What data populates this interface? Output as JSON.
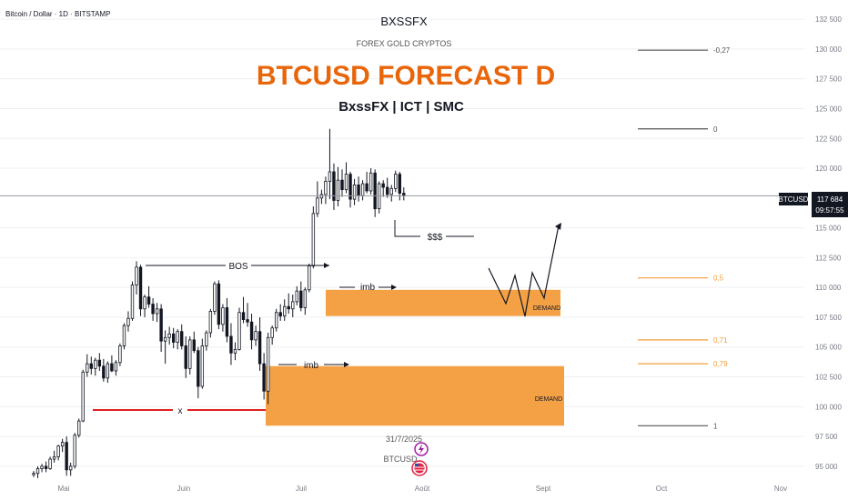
{
  "header": {
    "symbol_line": "Bitcoin / Dollar · 1D · BITSTAMP",
    "brand": "BXSSFX",
    "tagline": "FOREX GOLD CRYPTOS",
    "title": "BTCUSD FORECAST D",
    "subtitle": "BxssFX | ICT | SMC"
  },
  "colors": {
    "up": "#ffffff",
    "down": "#131722",
    "demand_fill": "#f39c3c",
    "title": "#e8650a",
    "fib_gray": "#555555",
    "fib_orange": "#f39c3c",
    "red_line": "#e02020",
    "grid": "#eef0f3",
    "axis_text": "#787b86"
  },
  "price_tag": {
    "symbol": "BTCUSD",
    "price": "117 684",
    "countdown": "09:57:55",
    "value": 117684
  },
  "markers": {
    "date": "31/7/2025",
    "symbol_partial": "BTCUSD"
  },
  "annotations": {
    "bos": "BOS",
    "imb": "imb",
    "liquidity": "$$$",
    "x_mark": "x",
    "demand": "DEMAND"
  },
  "fib_levels": [
    {
      "label": "-0,27",
      "color": "gray"
    },
    {
      "label": "0",
      "color": "gray"
    },
    {
      "label": "0,5",
      "color": "orange"
    },
    {
      "label": "0,71",
      "color": "orange"
    },
    {
      "label": "0,79",
      "color": "orange"
    },
    {
      "label": "1",
      "color": "gray"
    }
  ],
  "chart_data": {
    "type": "candlestick",
    "ylim": [
      94000,
      133500
    ],
    "x_labels": [
      "Mai",
      "Juin",
      "Juil",
      "Août",
      "Sept",
      "Oct",
      "Nov"
    ],
    "y_ticks": [
      132500,
      130000,
      127500,
      125000,
      122500,
      120000,
      115000,
      112500,
      110000,
      107500,
      105000,
      102500,
      100000,
      97500,
      95000
    ],
    "y_tick_labels": [
      "132 500",
      "130 000",
      "127 500",
      "125 000",
      "122 500",
      "120 000",
      "115 000",
      "112 500",
      "110 000",
      "107 500",
      "105 000",
      "102 500",
      "100 000",
      "97 500",
      "95 000"
    ],
    "fib_prices": [
      129900,
      123300,
      110800,
      105600,
      103600,
      98400
    ],
    "demand_zones": [
      {
        "top": 109800,
        "bottom": 107600
      },
      {
        "top": 103400,
        "bottom": 98400
      }
    ],
    "candles": [
      [
        94300,
        94600,
        94100,
        94400
      ],
      [
        94400,
        95000,
        94000,
        94800
      ],
      [
        94800,
        95200,
        94500,
        95000
      ],
      [
        95000,
        95400,
        94500,
        94800
      ],
      [
        94800,
        95800,
        94700,
        95600
      ],
      [
        95600,
        96300,
        95300,
        95800
      ],
      [
        95800,
        96800,
        95500,
        96700
      ],
      [
        96700,
        97300,
        96200,
        97000
      ],
      [
        97000,
        97500,
        94200,
        94700
      ],
      [
        94700,
        95300,
        94200,
        95000
      ],
      [
        95000,
        97800,
        94800,
        97600
      ],
      [
        97600,
        99000,
        97400,
        98800
      ],
      [
        98800,
        103100,
        98700,
        102900
      ],
      [
        102900,
        104400,
        102500,
        103600
      ],
      [
        103600,
        104200,
        102700,
        103200
      ],
      [
        103200,
        104100,
        102600,
        103900
      ],
      [
        103900,
        104500,
        103000,
        103400
      ],
      [
        103400,
        104000,
        102100,
        102400
      ],
      [
        102400,
        103800,
        102000,
        103600
      ],
      [
        103600,
        104300,
        102900,
        103000
      ],
      [
        103000,
        103900,
        102600,
        103700
      ],
      [
        103700,
        105300,
        103400,
        105100
      ],
      [
        105100,
        107000,
        104800,
        106800
      ],
      [
        106800,
        108000,
        106300,
        107400
      ],
      [
        107400,
        110500,
        107200,
        110200
      ],
      [
        110200,
        112200,
        109400,
        111700
      ],
      [
        111700,
        111900,
        107600,
        108200
      ],
      [
        108200,
        109400,
        107500,
        109200
      ],
      [
        109200,
        110100,
        108300,
        108600
      ],
      [
        108600,
        109100,
        107200,
        107800
      ],
      [
        107800,
        108700,
        107100,
        108200
      ],
      [
        108200,
        108600,
        104600,
        105500
      ],
      [
        105500,
        106400,
        103600,
        105800
      ],
      [
        105800,
        106700,
        105200,
        106100
      ],
      [
        106100,
        106600,
        104900,
        105400
      ],
      [
        105400,
        106500,
        104800,
        106300
      ],
      [
        106300,
        106900,
        104800,
        105100
      ],
      [
        105100,
        105900,
        102400,
        103200
      ],
      [
        103200,
        105900,
        102700,
        105600
      ],
      [
        105600,
        106300,
        104500,
        104700
      ],
      [
        104700,
        105000,
        100700,
        101700
      ],
      [
        101700,
        105700,
        101500,
        105100
      ],
      [
        105100,
        106400,
        104700,
        106200
      ],
      [
        106200,
        108200,
        105800,
        108000
      ],
      [
        108000,
        110500,
        107700,
        110300
      ],
      [
        110300,
        110600,
        106500,
        106900
      ],
      [
        106900,
        108600,
        106300,
        108300
      ],
      [
        108300,
        109100,
        105400,
        105900
      ],
      [
        105900,
        107000,
        103500,
        104500
      ],
      [
        104500,
        105400,
        103900,
        104800
      ],
      [
        104800,
        108300,
        104700,
        107900
      ],
      [
        107900,
        109200,
        107000,
        107300
      ],
      [
        107300,
        108700,
        106700,
        107100
      ],
      [
        107100,
        107800,
        104800,
        105600
      ],
      [
        105600,
        106800,
        105100,
        106300
      ],
      [
        106300,
        107500,
        103000,
        103600
      ],
      [
        103600,
        104500,
        100600,
        101300
      ],
      [
        101300,
        106200,
        100200,
        105800
      ],
      [
        105800,
        106800,
        105200,
        106600
      ],
      [
        106600,
        108200,
        106300,
        107900
      ],
      [
        107900,
        108600,
        107200,
        107600
      ],
      [
        107600,
        109000,
        107200,
        108400
      ],
      [
        108400,
        109500,
        107800,
        108200
      ],
      [
        108200,
        109400,
        107500,
        108800
      ],
      [
        108800,
        110100,
        108500,
        109700
      ],
      [
        109700,
        110500,
        108000,
        108300
      ],
      [
        108300,
        110000,
        107700,
        109800
      ],
      [
        109800,
        112000,
        109600,
        111800
      ],
      [
        111800,
        116800,
        111600,
        116200
      ],
      [
        116200,
        118900,
        115900,
        117500
      ],
      [
        117500,
        118200,
        117000,
        117800
      ],
      [
        117800,
        119300,
        117000,
        118900
      ],
      [
        118900,
        123300,
        117400,
        119700
      ],
      [
        119700,
        120400,
        116500,
        117300
      ],
      [
        117300,
        120100,
        116800,
        119000
      ],
      [
        119000,
        119900,
        117600,
        118200
      ],
      [
        118200,
        120500,
        117900,
        119500
      ],
      [
        119500,
        119700,
        116700,
        117400
      ],
      [
        117400,
        119100,
        116900,
        118600
      ],
      [
        118600,
        119300,
        117200,
        117700
      ],
      [
        117700,
        119000,
        117300,
        118700
      ],
      [
        118700,
        119700,
        117900,
        118100
      ],
      [
        118100,
        120000,
        117800,
        119600
      ],
      [
        119600,
        119900,
        115900,
        116600
      ],
      [
        116600,
        118900,
        116200,
        118700
      ],
      [
        118700,
        119000,
        117600,
        118400
      ],
      [
        118400,
        119200,
        117500,
        117800
      ],
      [
        117800,
        118600,
        117200,
        118300
      ],
      [
        118300,
        119800,
        118000,
        119500
      ],
      [
        119500,
        119700,
        117300,
        117900
      ],
      [
        117900,
        118400,
        117300,
        117684
      ]
    ]
  }
}
